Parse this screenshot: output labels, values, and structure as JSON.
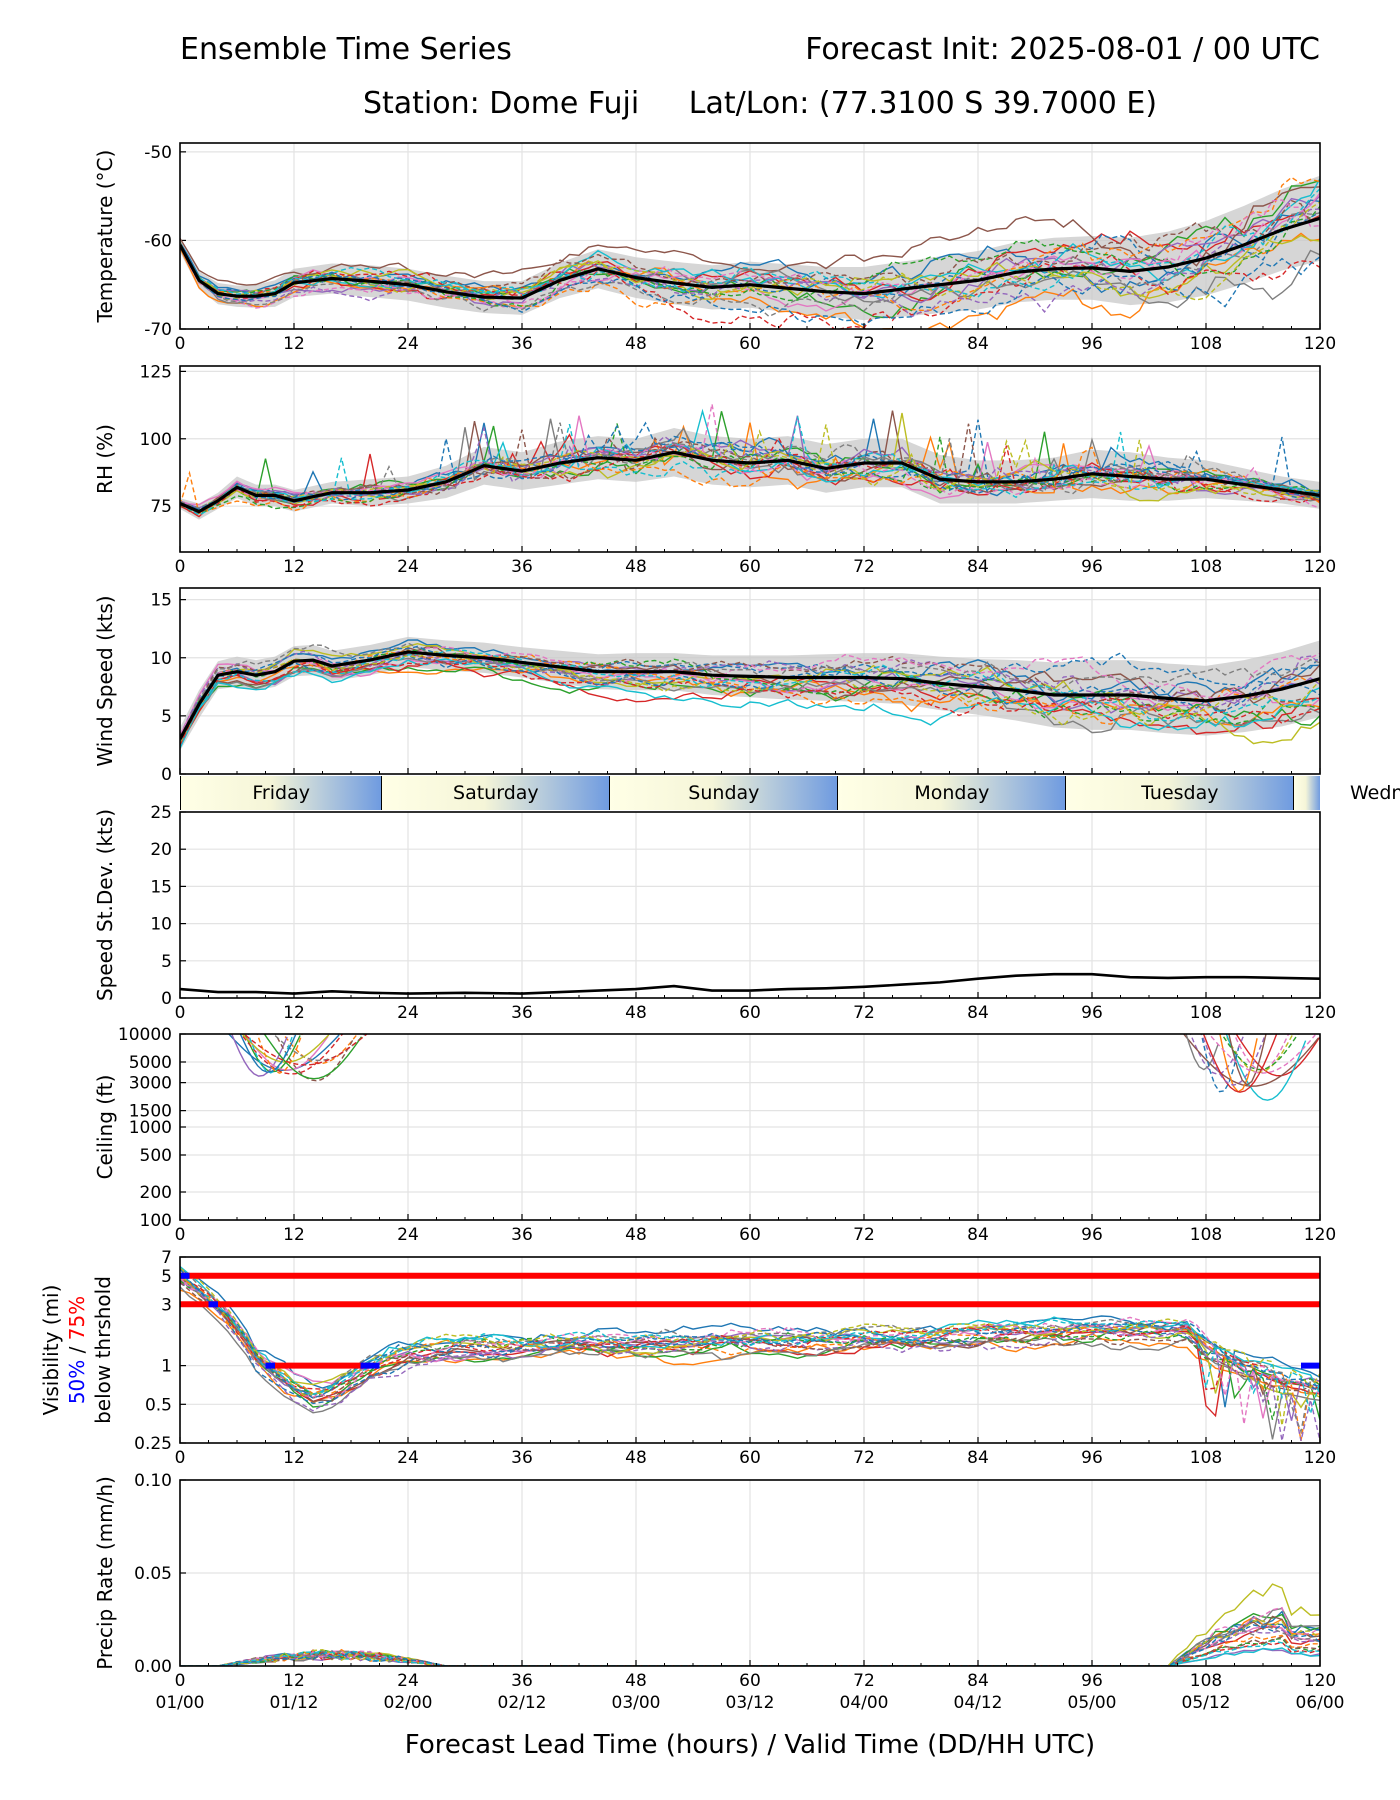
{
  "header": {
    "title_left": "Ensemble Time Series",
    "title_right": "Forecast Init: 2025-08-01 / 00 UTC",
    "station": "Station: Dome Fuji",
    "latlon": "Lat/Lon: (77.3100 S 39.7000 E)"
  },
  "xlabel": "Forecast Lead Time (hours) / Valid Time (DD/HH UTC)",
  "x_ticks": [
    0,
    12,
    24,
    36,
    48,
    60,
    72,
    84,
    96,
    108,
    120
  ],
  "valid_time_labels": [
    "01/00",
    "01/12",
    "02/00",
    "02/12",
    "03/00",
    "03/12",
    "04/00",
    "04/12",
    "05/00",
    "05/12",
    "06/00"
  ],
  "days": [
    {
      "label": "Friday",
      "start": 0,
      "end": 21.3
    },
    {
      "label": "Saturday",
      "start": 21.3,
      "end": 45.3
    },
    {
      "label": "Sunday",
      "start": 45.3,
      "end": 69.3
    },
    {
      "label": "Monday",
      "start": 69.3,
      "end": 93.3
    },
    {
      "label": "Tuesday",
      "start": 93.3,
      "end": 117.3
    },
    {
      "label": "Wednesday",
      "start": 117.3,
      "end": 120
    }
  ],
  "colors": {
    "ensemble": [
      "#1f77b4",
      "#ff7f0e",
      "#2ca02c",
      "#d62728",
      "#9467bd",
      "#8c564b",
      "#e377c2",
      "#7f7f7f",
      "#bcbd22",
      "#17becf"
    ],
    "mean": "#000000",
    "spread": "#c8c8c8",
    "threshold_75": "#ff0000",
    "threshold_50": "#0000ff"
  },
  "chart_data": [
    {
      "type": "line",
      "panel": "temperature",
      "ylabel": "Temperature (°C)",
      "ylim": [
        -70,
        -49
      ],
      "yticks": [
        -70,
        -60,
        -50
      ],
      "mean": {
        "x": [
          0,
          2,
          4,
          6,
          8,
          10,
          12,
          16,
          20,
          24,
          28,
          32,
          36,
          40,
          44,
          48,
          52,
          56,
          60,
          64,
          68,
          72,
          76,
          80,
          84,
          88,
          92,
          96,
          100,
          104,
          108,
          112,
          116,
          120
        ],
        "y": [
          -60.5,
          -64.5,
          -66.0,
          -66.3,
          -66.3,
          -66.0,
          -64.8,
          -64.3,
          -64.6,
          -65.0,
          -65.8,
          -66.4,
          -66.5,
          -64.5,
          -63.2,
          -64.2,
          -64.8,
          -65.3,
          -65.0,
          -65.4,
          -65.8,
          -66.0,
          -65.5,
          -65.0,
          -64.5,
          -63.6,
          -63.2,
          -63.1,
          -63.5,
          -63.0,
          -62.0,
          -60.5,
          -58.8,
          -57.5
        ]
      },
      "spread_width": [
        0.8,
        1.0,
        1.2,
        1.2,
        1.3,
        1.5,
        1.6,
        1.7,
        1.8,
        1.8,
        1.8,
        1.8,
        1.9,
        2.0,
        2.2,
        2.3,
        2.4,
        2.5,
        2.6,
        2.7,
        2.8,
        3.0,
        3.1,
        3.2,
        3.3,
        3.4,
        3.5,
        3.6,
        3.8,
        4.0,
        4.2,
        4.4,
        4.6,
        4.8
      ],
      "members": 21
    },
    {
      "type": "line",
      "panel": "rh",
      "ylabel": "RH (%)",
      "ylim": [
        58,
        127
      ],
      "yticks": [
        75,
        100,
        125
      ],
      "mean": {
        "x": [
          0,
          2,
          4,
          6,
          8,
          10,
          12,
          16,
          20,
          24,
          28,
          32,
          36,
          40,
          44,
          48,
          52,
          56,
          60,
          64,
          68,
          72,
          76,
          80,
          84,
          88,
          92,
          96,
          100,
          104,
          108,
          112,
          116,
          120
        ],
        "y": [
          76,
          73,
          77,
          82,
          79,
          79,
          77,
          80,
          80,
          81,
          84,
          90,
          88,
          91,
          93,
          92,
          95,
          92,
          91,
          92,
          89,
          91,
          91,
          85,
          84,
          84,
          85,
          87,
          86,
          85,
          85,
          83,
          81,
          79
        ]
      },
      "spread_width": [
        2,
        3,
        3,
        4,
        4,
        4,
        4,
        4,
        5,
        5,
        6,
        7,
        7,
        8,
        8,
        8,
        9,
        9,
        9,
        9,
        9,
        9,
        9,
        9,
        8,
        8,
        8,
        9,
        9,
        8,
        7,
        6,
        5,
        5
      ],
      "members": 21
    },
    {
      "type": "line",
      "panel": "wind_speed",
      "ylabel": "Wind Speed (kts)",
      "ylim": [
        0,
        16
      ],
      "yticks": [
        0,
        5,
        10,
        15
      ],
      "mean": {
        "x": [
          0,
          2,
          4,
          6,
          8,
          10,
          12,
          14,
          16,
          20,
          24,
          28,
          32,
          36,
          40,
          44,
          48,
          52,
          56,
          60,
          64,
          68,
          72,
          76,
          80,
          84,
          88,
          92,
          96,
          100,
          104,
          108,
          112,
          116,
          120
        ],
        "y": [
          3,
          6,
          8.5,
          8.8,
          8.5,
          8.8,
          9.7,
          9.8,
          9.3,
          9.8,
          10.5,
          10.2,
          10.0,
          9.6,
          9.2,
          8.8,
          8.8,
          8.8,
          8.5,
          8.4,
          8.3,
          8.3,
          8.3,
          8.2,
          7.8,
          7.5,
          7.2,
          6.8,
          6.8,
          6.8,
          6.5,
          6.3,
          6.7,
          7.3,
          8.2
        ]
      },
      "spread_width": [
        1,
        1.2,
        1.2,
        1.3,
        1.3,
        1.3,
        1.3,
        1.3,
        1.3,
        1.3,
        1.3,
        1.3,
        1.3,
        1.3,
        1.4,
        1.5,
        1.6,
        1.6,
        1.7,
        1.8,
        1.9,
        2.0,
        2.1,
        2.2,
        2.3,
        2.4,
        2.6,
        2.8,
        3.0,
        3.0,
        3.0,
        3.0,
        3.1,
        3.2,
        3.3
      ],
      "members": 21
    },
    {
      "type": "line",
      "panel": "speed_stdev",
      "ylabel": "Speed St.Dev. (kts)",
      "ylim": [
        0,
        25
      ],
      "yticks": [
        0,
        5,
        10,
        15,
        20,
        25
      ],
      "x": [
        0,
        4,
        8,
        12,
        16,
        20,
        24,
        30,
        36,
        40,
        44,
        48,
        52,
        56,
        60,
        64,
        68,
        72,
        76,
        80,
        84,
        88,
        92,
        96,
        100,
        104,
        108,
        112,
        116,
        120
      ],
      "y": [
        1.2,
        0.8,
        0.8,
        0.6,
        0.9,
        0.7,
        0.6,
        0.7,
        0.6,
        0.8,
        1.0,
        1.2,
        1.6,
        1.0,
        1.0,
        1.2,
        1.3,
        1.5,
        1.8,
        2.1,
        2.6,
        3.0,
        3.2,
        3.2,
        2.8,
        2.7,
        2.8,
        2.8,
        2.7,
        2.6
      ]
    },
    {
      "type": "line",
      "panel": "ceiling",
      "scale": "log",
      "ylabel": "Ceiling (ft)",
      "ylim": [
        100,
        10000
      ],
      "yticks": [
        100,
        200,
        500,
        1000,
        1500,
        3000,
        5000,
        10000
      ],
      "segments": [
        {
          "x_start": 4,
          "x_end": 20.5,
          "y_min": 2900,
          "y_max": 10000
        },
        {
          "x_start": 105,
          "x_end": 120,
          "y_min": 1900,
          "y_max": 10000
        }
      ]
    },
    {
      "type": "line",
      "panel": "visibility",
      "scale": "log",
      "ylabel": "Visibility (mi)",
      "ylabel_50": "50%",
      "ylabel_sep": " / ",
      "ylabel_75": "75%",
      "ylabel_tail": "below thrshold",
      "ylim": [
        0.25,
        7
      ],
      "yticks": [
        0.25,
        0.5,
        1,
        3,
        5,
        7
      ],
      "threshold_lines": [
        5,
        3
      ],
      "threshold_75_segments": [
        [
          0,
          120,
          5
        ],
        [
          0,
          120,
          3
        ],
        [
          9,
          20,
          1
        ]
      ],
      "threshold_50_segments": [
        [
          0,
          1,
          5
        ],
        [
          3,
          4,
          3
        ],
        [
          9,
          10,
          1
        ],
        [
          19,
          21,
          1
        ],
        [
          118,
          120,
          1
        ]
      ],
      "mean": {
        "x": [
          0,
          2,
          4,
          6,
          8,
          10,
          12,
          14,
          16,
          18,
          20,
          24,
          30,
          36,
          42,
          48,
          54,
          60,
          66,
          72,
          78,
          84,
          90,
          96,
          102,
          106,
          108,
          112,
          116,
          120
        ],
        "y": [
          5,
          4,
          3,
          2,
          1.2,
          0.9,
          0.7,
          0.6,
          0.65,
          0.8,
          1.0,
          1.3,
          1.4,
          1.4,
          1.5,
          1.5,
          1.6,
          1.6,
          1.6,
          1.7,
          1.7,
          1.8,
          1.8,
          1.9,
          1.9,
          1.9,
          1.4,
          1.0,
          0.8,
          0.7
        ]
      },
      "members": 21
    },
    {
      "type": "line",
      "panel": "precip_rate",
      "ylabel": "Precip Rate (mm/h)",
      "ylim": [
        0,
        0.1
      ],
      "yticks": [
        0,
        0.05,
        0.1
      ],
      "ytick_labels": [
        "0.00",
        "0.05",
        "0.10"
      ],
      "members": 21
    }
  ]
}
